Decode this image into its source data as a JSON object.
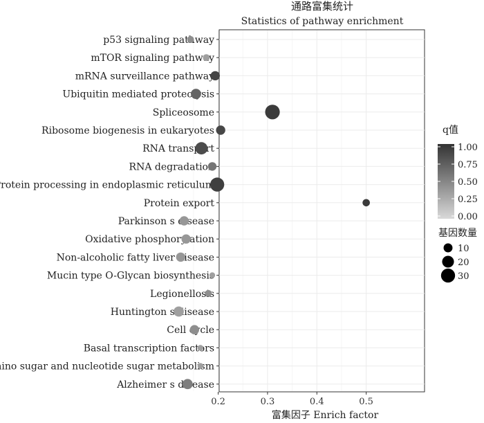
{
  "chart_data": {
    "type": "scatter",
    "title": "通路富集统计",
    "subtitle": "Statistics of pathway enrichment",
    "xlabel": "富集因子  Enrich factor",
    "xlim": [
      0.1,
      0.52
    ],
    "xticks": [
      0.2,
      0.3,
      0.4,
      0.5
    ],
    "xtick_labels": [
      "0.2",
      "0.3",
      "0.4",
      "0.5"
    ],
    "pathways": [
      {
        "name": "p53 signaling pathway",
        "x": 0.144,
        "genes": 5,
        "q": 0.45
      },
      {
        "name": "mTOR signaling pathway",
        "x": 0.176,
        "genes": 5,
        "q": 0.35
      },
      {
        "name": "mRNA surveillance pathway",
        "x": 0.194,
        "genes": 11,
        "q": 0.9
      },
      {
        "name": "Ubiquitin mediated proteolysis",
        "x": 0.155,
        "genes": 14,
        "q": 0.7
      },
      {
        "name": "Spliceosome",
        "x": 0.31,
        "genes": 33,
        "q": 0.95
      },
      {
        "name": "Ribosome biogenesis in eukaryotes",
        "x": 0.205,
        "genes": 11,
        "q": 0.88
      },
      {
        "name": "RNA transport",
        "x": 0.166,
        "genes": 22,
        "q": 0.85
      },
      {
        "name": "RNA degradation",
        "x": 0.188,
        "genes": 9,
        "q": 0.6
      },
      {
        "name": "Protein processing in endoplasmic reticulum",
        "x": 0.198,
        "genes": 30,
        "q": 0.93
      },
      {
        "name": "Protein export",
        "x": 0.5,
        "genes": 6,
        "q": 0.95
      },
      {
        "name": "Parkinson s disease",
        "x": 0.131,
        "genes": 11,
        "q": 0.4
      },
      {
        "name": "Oxidative phosphorylation",
        "x": 0.135,
        "genes": 11,
        "q": 0.4
      },
      {
        "name": "Non-alcoholic fatty liver disease",
        "x": 0.124,
        "genes": 11,
        "q": 0.4
      },
      {
        "name": "Mucin type O-Glycan biosynthesis",
        "x": 0.188,
        "genes": 3,
        "q": 0.35
      },
      {
        "name": "Legionellosis",
        "x": 0.18,
        "genes": 5,
        "q": 0.45
      },
      {
        "name": "Huntington s disease",
        "x": 0.12,
        "genes": 14,
        "q": 0.35
      },
      {
        "name": "Cell cycle",
        "x": 0.152,
        "genes": 11,
        "q": 0.45
      },
      {
        "name": "Basal transcription factors",
        "x": 0.164,
        "genes": 3,
        "q": 0.35
      },
      {
        "name": "Amino sugar and nucleotide sugar metabolism",
        "x": 0.164,
        "genes": 3,
        "q": 0.35
      },
      {
        "name": "Alzheimer s disease",
        "x": 0.138,
        "genes": 14,
        "q": 0.55
      }
    ],
    "color_legend": {
      "title": "q值",
      "min": 0.0,
      "max": 1.0,
      "ticks": [
        "1.00",
        "0.75",
        "0.50",
        "0.25",
        "0.00"
      ],
      "low_color": "#d9d9d9",
      "high_color": "#333333"
    },
    "size_legend": {
      "title": "基因数量",
      "values": [
        10,
        20,
        30
      ],
      "labels": [
        "10",
        "20",
        "30"
      ]
    },
    "colors": {
      "grid": "#ebebeb",
      "axis": "#333333",
      "point_low": "#d9d9d9",
      "point_high": "#333333"
    }
  }
}
